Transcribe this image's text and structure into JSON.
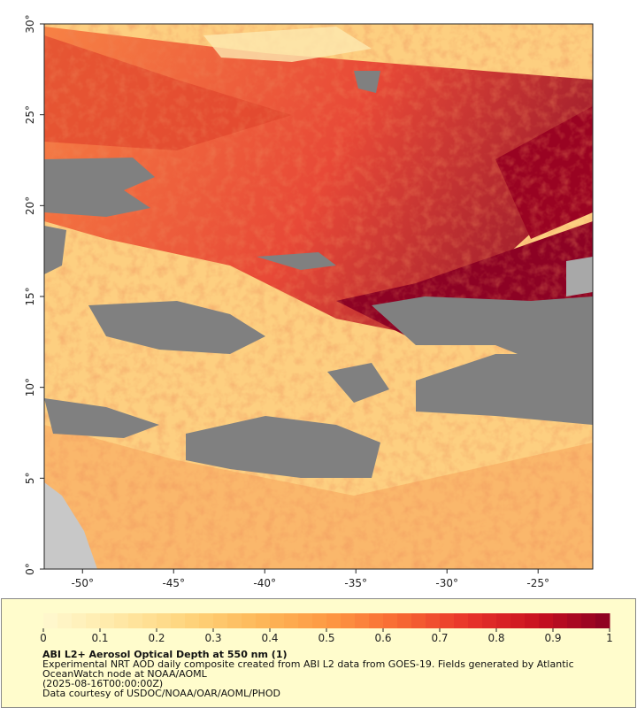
{
  "chart_data": {
    "type": "map",
    "xlim": [
      -52.1,
      -22.0
    ],
    "ylim": [
      0,
      30
    ],
    "xticks": [
      {
        "value": -50,
        "label": "-50°"
      },
      {
        "value": -45,
        "label": "-45°"
      },
      {
        "value": -40,
        "label": "-40°"
      },
      {
        "value": -35,
        "label": "-35°"
      },
      {
        "value": -30,
        "label": "-30°"
      },
      {
        "value": -25,
        "label": "-25°"
      }
    ],
    "yticks": [
      {
        "value": 0,
        "label": "0°"
      },
      {
        "value": 5,
        "label": "5°"
      },
      {
        "value": 10,
        "label": "10°"
      },
      {
        "value": 15,
        "label": "15°"
      },
      {
        "value": 20,
        "label": "20°"
      },
      {
        "value": 25,
        "label": "25°"
      },
      {
        "value": 30,
        "label": "30°"
      }
    ],
    "colorbar": {
      "lim": [
        0,
        1
      ],
      "ticks": [
        0,
        0.1,
        0.2,
        0.3,
        0.4,
        0.5,
        0.6,
        0.7,
        0.8,
        0.9,
        1
      ],
      "colors": [
        "#fff8d0",
        "#ffe9a8",
        "#fed57e",
        "#fdb95a",
        "#fd9a44",
        "#f86a33",
        "#e8342a",
        "#c8101f",
        "#8a0022"
      ]
    },
    "title": "ABI L2+ Aerosol Optical Depth at 550 nm (1)",
    "description": "Experimental NRT AOD daily composite created from ABI L2 data from GOES-19. Fields generated by Atlantic OceanWatch node at NOAA/AOML",
    "timestamp": "(2025-08-16T00:00:00Z)",
    "credit": "Data courtesy of USDOC/NOAA/OAR/AOML/PHOD"
  }
}
